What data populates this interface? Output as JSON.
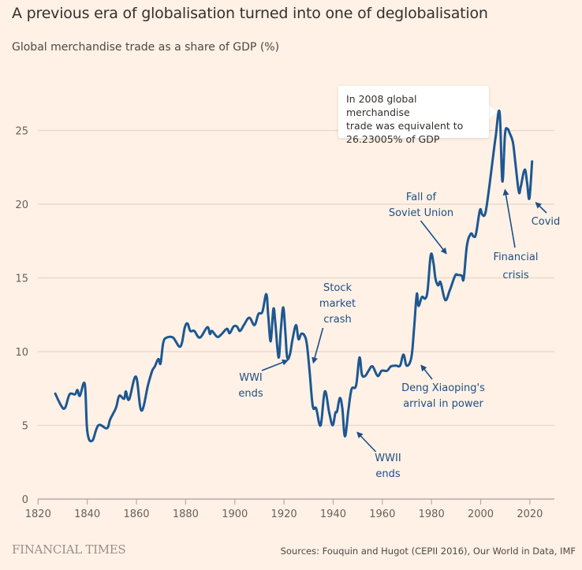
{
  "header": {
    "title": "A previous era of globalisation turned into one of deglobalisation",
    "subtitle": "Global merchandise trade as a share of GDP (%)"
  },
  "tooltip": {
    "lines": [
      "In 2008 global merchandise",
      "trade was equivalent to",
      "26.23005% of GDP"
    ]
  },
  "footer": {
    "logo": "FINANCIAL TIMES",
    "source": "Sources: Fouquin and Hugot (CEPII 2016), Our World in Data, IMF"
  },
  "colors": {
    "background": "#fff1e5",
    "line": "#1d5792",
    "annotation": "#1d4f86",
    "grid": "#e3d6cc",
    "axis": "#b5aca4"
  },
  "chart_data": {
    "type": "line",
    "title": "A previous era of globalisation turned into one of deglobalisation",
    "subtitle": "Global merchandise trade as a share of GDP (%)",
    "xlabel": "",
    "ylabel": "",
    "xlim": [
      1820,
      2030
    ],
    "ylim": [
      0,
      27
    ],
    "xticks": [
      1820,
      1840,
      1860,
      1880,
      1900,
      1920,
      1940,
      1960,
      1980,
      2000,
      2020
    ],
    "yticks": [
      0,
      5,
      10,
      15,
      20,
      25
    ],
    "grid": "horizontal",
    "series": [
      {
        "name": "Global merchandise trade (% of GDP)",
        "x": [
          1827,
          1829.5,
          1831,
          1832.8,
          1835,
          1836,
          1837,
          1839,
          1840,
          1842,
          1844.5,
          1848,
          1849.3,
          1851.7,
          1853,
          1855,
          1855.7,
          1857,
          1859.8,
          1862,
          1864.8,
          1866.4,
          1867.5,
          1868.9,
          1869.8,
          1870.9,
          1872.3,
          1874.9,
          1877.9,
          1879.7,
          1880.8,
          1881.9,
          1883.5,
          1885.8,
          1888.8,
          1889.9,
          1890.7,
          1892.9,
          1894.7,
          1896.8,
          1897.9,
          1899.5,
          1900.9,
          1902.1,
          1903.7,
          1905.9,
          1908,
          1909.6,
          1911.2,
          1912.8,
          1913.6,
          1914.6,
          1915.7,
          1916.5,
          1917.8,
          1918.7,
          1919.7,
          1920.6,
          1921.3,
          1922.4,
          1923.5,
          1924.9,
          1925.9,
          1927,
          1928.3,
          1929.3,
          1930.4,
          1931.7,
          1933.1,
          1934.9,
          1936.6,
          1938.4,
          1939.8,
          1940.9,
          1941.6,
          1942.7,
          1943.7,
          1944.8,
          1946.2,
          1947.5,
          1949.3,
          1950.7,
          1951.7,
          1953,
          1954.4,
          1956,
          1958.1,
          1959.7,
          1961.9,
          1963.5,
          1965.6,
          1967.2,
          1968.6,
          1969.9,
          1971.8,
          1972.9,
          1974,
          1974.7,
          1976.1,
          1977.4,
          1978.4,
          1979.7,
          1980.8,
          1981.6,
          1982.7,
          1983.7,
          1985.6,
          1987.5,
          1989.6,
          1990.7,
          1992.3,
          1993.1,
          1994.4,
          1996,
          1997.1,
          1998.1,
          1999.7,
          2000.6,
          2001.9,
          2003.5,
          2004.9,
          2006.1,
          2007.7,
          2008.8,
          2009.9,
          2010.9,
          2011.7,
          2013.1,
          2014.1,
          2015.5,
          2016.3,
          2017.9,
          2018.9,
          2019.8,
          2020.9
        ],
        "values": [
          7.15,
          6.3,
          6.2,
          7.1,
          7.1,
          7.4,
          7.0,
          7.8,
          4.6,
          3.95,
          5.0,
          4.8,
          5.4,
          6.2,
          7.0,
          6.8,
          7.3,
          6.75,
          8.3,
          6.0,
          7.8,
          8.7,
          9.0,
          9.5,
          9.2,
          10.6,
          10.95,
          10.95,
          10.35,
          11.65,
          11.9,
          11.4,
          11.4,
          10.95,
          11.65,
          11.2,
          11.4,
          11.0,
          11.2,
          11.55,
          11.25,
          11.7,
          11.7,
          11.4,
          11.8,
          12.3,
          11.8,
          12.55,
          12.7,
          13.9,
          12.45,
          10.7,
          12.9,
          11.9,
          9.6,
          11.4,
          13.0,
          11.2,
          9.6,
          9.8,
          10.85,
          11.8,
          10.85,
          11.2,
          11.1,
          10.5,
          8.7,
          6.3,
          6.15,
          5.0,
          7.3,
          5.85,
          5.0,
          5.85,
          5.95,
          6.85,
          6.2,
          4.25,
          6.05,
          7.45,
          7.7,
          9.6,
          8.45,
          8.35,
          8.7,
          9.0,
          8.35,
          8.7,
          8.7,
          9.0,
          9.05,
          9.05,
          9.8,
          9.05,
          9.6,
          11.55,
          13.9,
          13.1,
          13.7,
          13.6,
          14.15,
          16.55,
          16.0,
          14.95,
          14.5,
          14.7,
          13.5,
          14.2,
          15.15,
          15.2,
          15.15,
          14.95,
          17.2,
          18.0,
          17.8,
          18.0,
          19.6,
          19.3,
          19.4,
          21.2,
          23.05,
          24.6,
          26.23,
          21.55,
          24.75,
          25.1,
          24.85,
          24.2,
          22.8,
          20.85,
          21.2,
          22.35,
          21.4,
          20.4,
          22.9
        ]
      }
    ],
    "annotations": [
      {
        "lines": [
          "WWI",
          "ends"
        ],
        "year": 1918
      },
      {
        "lines": [
          "Stock",
          "market",
          "crash"
        ],
        "year": 1929
      },
      {
        "lines": [
          "WWII",
          "ends"
        ],
        "year": 1945
      },
      {
        "lines": [
          "Deng Xiaoping's",
          "arrival in power"
        ],
        "year": 1978
      },
      {
        "lines": [
          "Fall of",
          "Soviet Union"
        ],
        "year": 1991
      },
      {
        "lines": [
          "Financial",
          "crisis"
        ],
        "year": 2009
      },
      {
        "lines": [
          "Covid"
        ],
        "year": 2020
      }
    ],
    "highlight": {
      "year": 2008,
      "value": 26.23005
    }
  }
}
